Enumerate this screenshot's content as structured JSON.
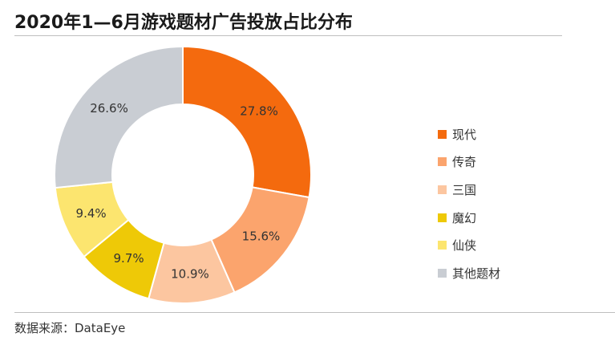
{
  "title": "2020年1—6月游戏题材广告投放占比分布",
  "source": "数据来源：DataEye",
  "chart_data": {
    "type": "pie",
    "donut": true,
    "categories": [
      "现代",
      "传奇",
      "三国",
      "魔幻",
      "仙侠",
      "其他题材"
    ],
    "values": [
      27.8,
      15.6,
      10.9,
      9.7,
      9.4,
      26.6
    ],
    "labels": [
      "27.8%",
      "15.6%",
      "10.9%",
      "9.7%",
      "9.4%",
      "26.6%"
    ],
    "colors": [
      "#F46A0E",
      "#FBA46D",
      "#FCC6A0",
      "#EEC907",
      "#FCE56F",
      "#C9CDD3"
    ],
    "legend_position": "right",
    "unit": "%"
  }
}
